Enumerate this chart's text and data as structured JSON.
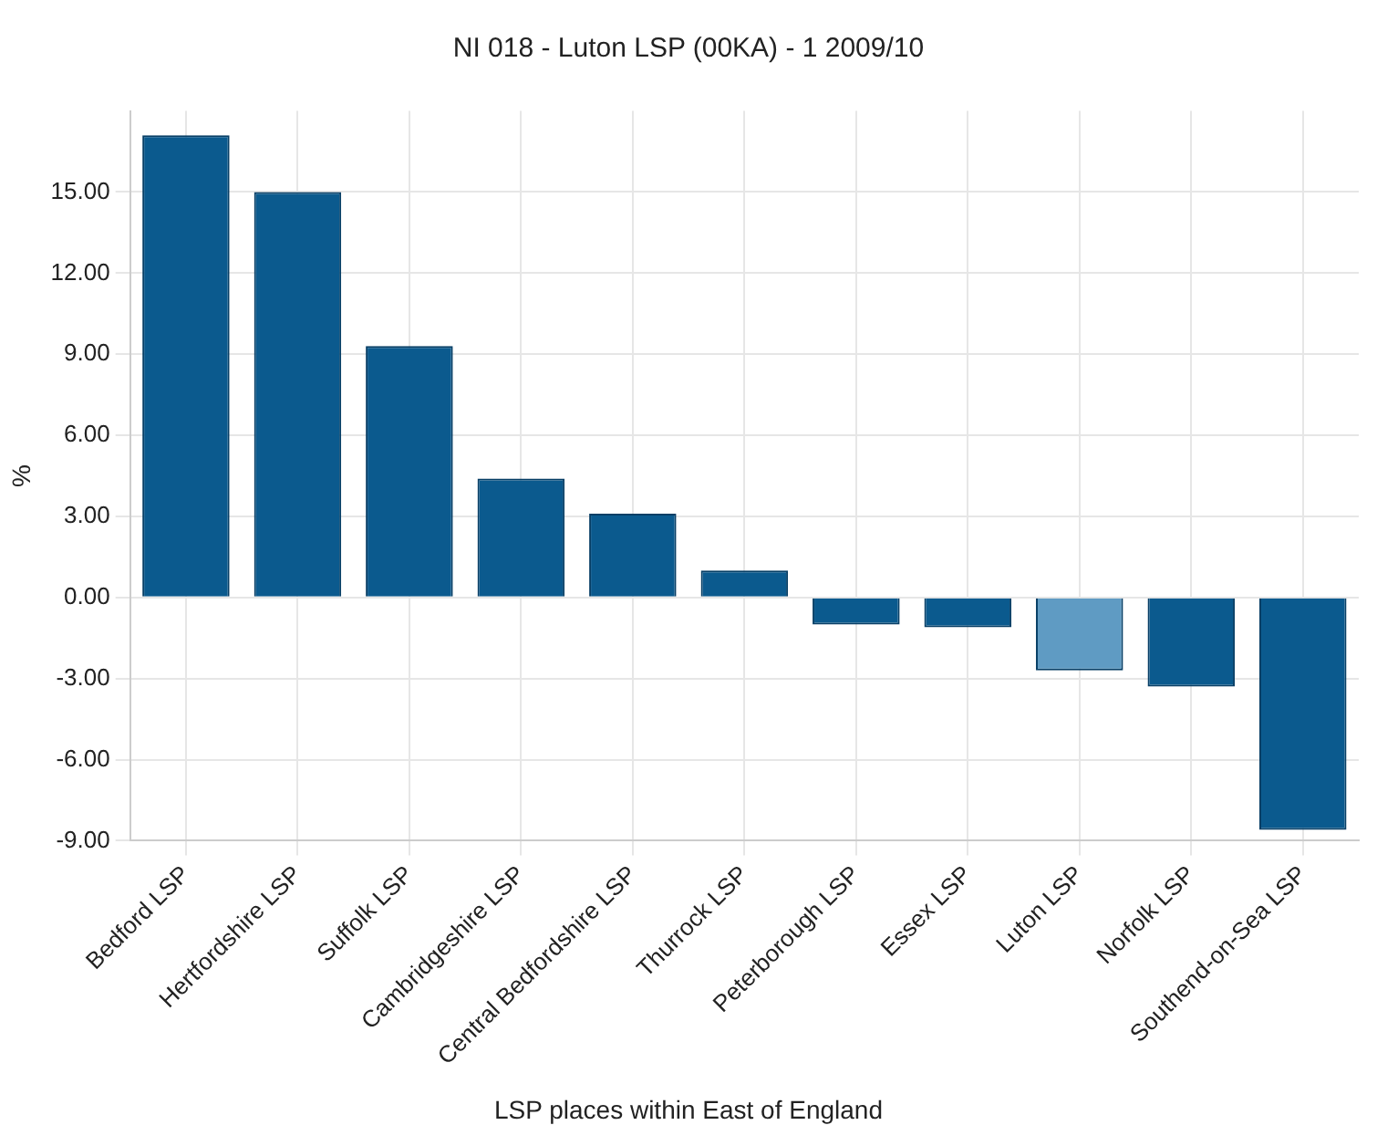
{
  "chart_data": {
    "type": "bar",
    "title": "NI 018 - Luton LSP (00KA) - 1 2009/10",
    "xlabel": "LSP places within East of England",
    "ylabel": "%",
    "categories": [
      "Bedford LSP",
      "Hertfordshire LSP",
      "Suffolk LSP",
      "Cambridgeshire LSP",
      "Central Bedfordshire LSP",
      "Thurrock LSP",
      "Peterborough LSP",
      "Essex LSP",
      "Luton LSP",
      "Norfolk LSP",
      "Southend-on-Sea LSP"
    ],
    "values": [
      17.1,
      15.0,
      9.3,
      4.4,
      3.1,
      1.0,
      -1.0,
      -1.1,
      -2.7,
      -3.3,
      -8.6
    ],
    "colors": [
      "#0b5a8e",
      "#0b5a8e",
      "#0b5a8e",
      "#0b5a8e",
      "#0b5a8e",
      "#0b5a8e",
      "#0b5a8e",
      "#0b5a8e",
      "#5f9bc3",
      "#0b5a8e",
      "#0b5a8e"
    ],
    "ylim": [
      -9,
      18
    ],
    "yticks": [
      {
        "value": -9,
        "label": "-9.00"
      },
      {
        "value": -6,
        "label": "-6.00"
      },
      {
        "value": -3,
        "label": "-3.00"
      },
      {
        "value": 0,
        "label": "0.00"
      },
      {
        "value": 3,
        "label": "3.00"
      },
      {
        "value": 6,
        "label": "6.00"
      },
      {
        "value": 9,
        "label": "9.00"
      },
      {
        "value": 12,
        "label": "12.00"
      },
      {
        "value": 15,
        "label": "15.00"
      }
    ],
    "grid": true
  }
}
